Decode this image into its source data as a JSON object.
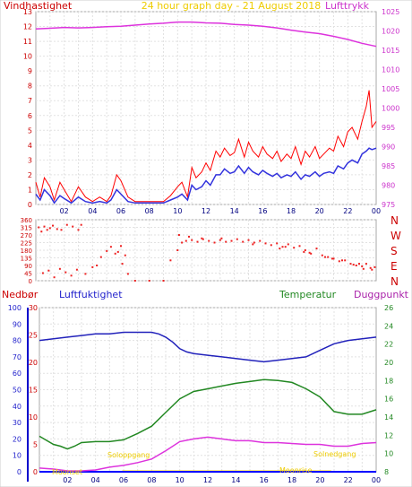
{
  "header": {
    "wind_label": "Vindhastighet",
    "title": "24 hour graph day - 21 August 2018",
    "pressure_label": "Lufttrykk"
  },
  "lower_header": {
    "rain_label": "Nedbør",
    "humidity_label": "Luftfuktighet",
    "temp_label": "Temperatur",
    "dew_label": "Duggpunkt"
  },
  "colors": {
    "wind_avg": "#3333dd",
    "wind_gust": "#ff0000",
    "pressure": "#dd33dd",
    "direction": "#ee2222",
    "humidity": "#2222bb",
    "temperature": "#228822",
    "dewpoint": "#dd33dd",
    "rain": "#0000ff",
    "title": "#ffdd00",
    "sun": "#ffdd00"
  },
  "x_ticks": [
    "02",
    "04",
    "06",
    "08",
    "10",
    "12",
    "14",
    "16",
    "18",
    "20",
    "22",
    "00"
  ],
  "annotations": {
    "moonset": "Moonset",
    "sunrise": "Soloppgang",
    "moonrise": "Moonrise",
    "sunset": "Solnedgang"
  },
  "chart_data": [
    {
      "type": "line",
      "title": "24 hour graph day - 21 August 2018",
      "x_unit": "hours",
      "xlim": [
        0,
        24
      ],
      "y_left": {
        "label": "Vindhastighet",
        "ylim": [
          0,
          13
        ],
        "ticks": [
          0,
          1,
          2,
          3,
          4,
          5,
          6,
          7,
          8,
          9,
          10,
          11,
          12,
          13
        ]
      },
      "y_right": {
        "label": "Lufttrykk",
        "ylim": [
          975,
          1025
        ],
        "ticks": [
          975,
          980,
          985,
          990,
          995,
          1000,
          1005,
          1010,
          1015,
          1020,
          1025
        ]
      },
      "series": [
        {
          "name": "Lufttrykk",
          "axis": "right",
          "x": [
            0,
            1,
            2,
            3,
            4,
            5,
            6,
            7,
            8,
            9,
            10,
            11,
            12,
            13,
            14,
            15,
            16,
            17,
            18,
            19,
            20,
            21,
            22,
            23,
            24
          ],
          "y": [
            1020.5,
            1020.7,
            1020.9,
            1020.8,
            1020.9,
            1021.1,
            1021.2,
            1021.5,
            1021.8,
            1022.0,
            1022.3,
            1022.3,
            1022.1,
            1022.0,
            1021.7,
            1021.5,
            1021.2,
            1020.8,
            1020.2,
            1019.7,
            1019.3,
            1018.6,
            1017.8,
            1016.8,
            1016.0
          ]
        },
        {
          "name": "Vindkast",
          "axis": "left",
          "x": [
            0,
            0.3,
            0.6,
            1,
            1.3,
            1.7,
            2,
            2.5,
            3,
            3.5,
            4,
            4.5,
            5,
            5.3,
            5.7,
            6,
            6.5,
            7,
            7.5,
            8,
            8.5,
            9,
            9.5,
            10,
            10.3,
            10.7,
            11,
            11.3,
            11.7,
            12,
            12.3,
            12.7,
            13,
            13.3,
            13.7,
            14,
            14.3,
            14.7,
            15,
            15.3,
            15.7,
            16,
            16.3,
            16.7,
            17,
            17.3,
            17.7,
            18,
            18.3,
            18.7,
            19,
            19.3,
            19.7,
            20,
            20.3,
            20.7,
            21,
            21.3,
            21.7,
            22,
            22.3,
            22.7,
            23,
            23.3,
            23.5,
            23.7,
            24
          ],
          "y": [
            1.5,
            0.5,
            1.8,
            1.2,
            0.3,
            1.5,
            1.0,
            0.2,
            1.2,
            0.5,
            0.2,
            0.5,
            0.2,
            0.6,
            2.0,
            1.6,
            0.5,
            0.2,
            0.2,
            0.2,
            0.2,
            0.2,
            0.6,
            1.2,
            1.5,
            0.5,
            2.5,
            1.8,
            2.2,
            2.8,
            2.3,
            3.6,
            3.2,
            3.8,
            3.3,
            3.5,
            4.4,
            3.2,
            4.2,
            3.6,
            3.2,
            3.9,
            3.4,
            3.1,
            3.6,
            2.9,
            3.4,
            3.1,
            3.9,
            2.7,
            3.6,
            3.2,
            3.9,
            3.1,
            3.4,
            3.8,
            3.6,
            4.6,
            3.9,
            4.9,
            5.2,
            4.4,
            5.6,
            6.6,
            7.7,
            5.2,
            5.6
          ]
        },
        {
          "name": "Vindhastighet",
          "axis": "left",
          "x": [
            0,
            0.3,
            0.6,
            1,
            1.3,
            1.7,
            2,
            2.5,
            3,
            3.5,
            4,
            4.5,
            5,
            5.3,
            5.7,
            6,
            6.5,
            7,
            7.5,
            8,
            8.5,
            9,
            9.5,
            10,
            10.3,
            10.7,
            11,
            11.3,
            11.7,
            12,
            12.3,
            12.7,
            13,
            13.3,
            13.7,
            14,
            14.3,
            14.7,
            15,
            15.3,
            15.7,
            16,
            16.3,
            16.7,
            17,
            17.3,
            17.7,
            18,
            18.3,
            18.7,
            19,
            19.3,
            19.7,
            20,
            20.3,
            20.7,
            21,
            21.3,
            21.7,
            22,
            22.3,
            22.7,
            23,
            23.3,
            23.5,
            23.7,
            24
          ],
          "y": [
            0.7,
            0.3,
            1.0,
            0.6,
            0.1,
            0.6,
            0.4,
            0.1,
            0.5,
            0.2,
            0.1,
            0.2,
            0.1,
            0.3,
            1.0,
            0.7,
            0.2,
            0.1,
            0.1,
            0.1,
            0.1,
            0.1,
            0.3,
            0.5,
            0.7,
            0.3,
            1.3,
            1.0,
            1.2,
            1.6,
            1.3,
            2.0,
            2.0,
            2.4,
            2.1,
            2.2,
            2.6,
            2.1,
            2.5,
            2.2,
            2.0,
            2.3,
            2.1,
            1.9,
            2.1,
            1.8,
            2.0,
            1.9,
            2.2,
            1.7,
            2.0,
            1.9,
            2.2,
            1.9,
            2.1,
            2.2,
            2.1,
            2.6,
            2.4,
            2.8,
            3.0,
            2.8,
            3.4,
            3.6,
            3.8,
            3.7,
            3.8
          ]
        }
      ]
    },
    {
      "type": "scatter",
      "x_unit": "hours",
      "xlim": [
        0,
        24
      ],
      "y_left": {
        "ylim": [
          0,
          360
        ],
        "ticks": [
          0,
          45,
          90,
          135,
          180,
          225,
          270,
          315,
          360
        ]
      },
      "y_right": {
        "tick_labels": [
          "N",
          "W",
          "S",
          "E",
          "N"
        ]
      },
      "series": [
        {
          "name": "Vindretning",
          "x": [
            0.2,
            0.4,
            0.6,
            0.8,
            1.0,
            1.2,
            1.5,
            1.8,
            2.2,
            2.6,
            3.0,
            3.2,
            0.5,
            0.9,
            1.3,
            1.7,
            2.1,
            2.5,
            2.9,
            3.5,
            4.0,
            4.3,
            4.6,
            5.0,
            5.3,
            5.6,
            5.8,
            6.0,
            6.1,
            6.3,
            6.5,
            7.0,
            8.0,
            9.0,
            9.5,
            10.0,
            10.3,
            10.6,
            11.0,
            11.4,
            11.8,
            12.2,
            12.6,
            13.0,
            13.4,
            13.8,
            14.2,
            14.6,
            15.0,
            15.4,
            15.8,
            16.2,
            16.6,
            17.0,
            17.4,
            17.8,
            18.2,
            18.6,
            19.0,
            19.4,
            19.8,
            20.2,
            20.6,
            21.0,
            21.4,
            21.8,
            22.2,
            22.6,
            23.0,
            23.3,
            23.6,
            23.9,
            10.1,
            10.8,
            11.7,
            13.1,
            15.3,
            17.2,
            18.9,
            20.4,
            21.6,
            22.4,
            23.1,
            23.7,
            17.6,
            19.3,
            20.9,
            22.8
          ],
          "y": [
            315,
            290,
            320,
            300,
            310,
            325,
            305,
            300,
            330,
            320,
            300,
            330,
            45,
            60,
            20,
            70,
            50,
            30,
            65,
            40,
            80,
            90,
            140,
            175,
            200,
            160,
            170,
            205,
            100,
            150,
            40,
            0,
            0,
            0,
            120,
            180,
            225,
            235,
            240,
            230,
            245,
            235,
            225,
            240,
            230,
            235,
            245,
            230,
            240,
            225,
            235,
            220,
            210,
            220,
            200,
            215,
            195,
            205,
            180,
            160,
            190,
            150,
            140,
            130,
            115,
            120,
            100,
            90,
            85,
            100,
            75,
            80,
            270,
            260,
            250,
            250,
            215,
            190,
            170,
            140,
            120,
            95,
            70,
            65,
            200,
            165,
            130,
            100
          ]
        }
      ]
    },
    {
      "type": "line",
      "x_unit": "hours",
      "xlim": [
        0,
        24
      ],
      "y_rain": {
        "label": "Nedbør",
        "ylim": [
          0,
          30
        ],
        "ticks": [
          0,
          5,
          10,
          15,
          20,
          25,
          30
        ]
      },
      "y_humidity": {
        "label": "Luftfuktighet",
        "ylim": [
          0,
          100
        ],
        "ticks": [
          0,
          10,
          20,
          30,
          40,
          50,
          60,
          70,
          80,
          90,
          100
        ]
      },
      "y_temp": {
        "label": "Temperatur / Duggpunkt",
        "ylim": [
          8,
          26
        ],
        "ticks": [
          8,
          10,
          12,
          14,
          16,
          18,
          20,
          22,
          24,
          26
        ]
      },
      "series": [
        {
          "name": "Luftfuktighet",
          "axis": "humidity",
          "x": [
            0,
            1,
            2,
            3,
            4,
            5,
            6,
            7,
            8,
            8.5,
            9,
            9.5,
            10,
            10.5,
            11,
            12,
            13,
            14,
            15,
            16,
            17,
            18,
            19,
            20,
            21,
            22,
            23,
            24
          ],
          "y": [
            80,
            81,
            82,
            83,
            84,
            84,
            85,
            85,
            85,
            84,
            82,
            79,
            75,
            73,
            72,
            71,
            70,
            69,
            68,
            67,
            68,
            69,
            70,
            74,
            78,
            80,
            81,
            82
          ]
        },
        {
          "name": "Temperatur",
          "axis": "temp",
          "x": [
            0,
            1,
            1.5,
            2,
            2.5,
            3,
            4,
            5,
            6,
            7,
            8,
            9,
            10,
            11,
            12,
            13,
            14,
            15,
            16,
            17,
            18,
            19,
            20,
            21,
            22,
            23,
            24
          ],
          "y": [
            11.9,
            11.0,
            10.8,
            10.5,
            10.8,
            11.2,
            11.3,
            11.3,
            11.5,
            12.2,
            13.0,
            14.5,
            16.0,
            16.8,
            17.1,
            17.4,
            17.7,
            17.9,
            18.1,
            18.0,
            17.8,
            17.1,
            16.2,
            14.6,
            14.3,
            14.3,
            14.8
          ]
        },
        {
          "name": "Duggpunkt",
          "axis": "temp",
          "x": [
            0,
            1,
            1.5,
            2,
            3,
            4,
            5,
            6,
            7,
            8,
            9,
            10,
            11,
            12,
            13,
            14,
            15,
            16,
            17,
            18,
            19,
            20,
            21,
            22,
            23,
            24
          ],
          "y": [
            8.4,
            8.3,
            8.2,
            8.1,
            8.1,
            8.2,
            8.5,
            8.7,
            9.0,
            9.4,
            10.3,
            11.3,
            11.6,
            11.8,
            11.6,
            11.4,
            11.4,
            11.2,
            11.2,
            11.1,
            11.0,
            11.0,
            10.8,
            10.8,
            11.1,
            11.2
          ]
        },
        {
          "name": "Nedbør",
          "axis": "rain",
          "x": [
            0,
            24
          ],
          "y": [
            0,
            0
          ]
        }
      ]
    }
  ]
}
